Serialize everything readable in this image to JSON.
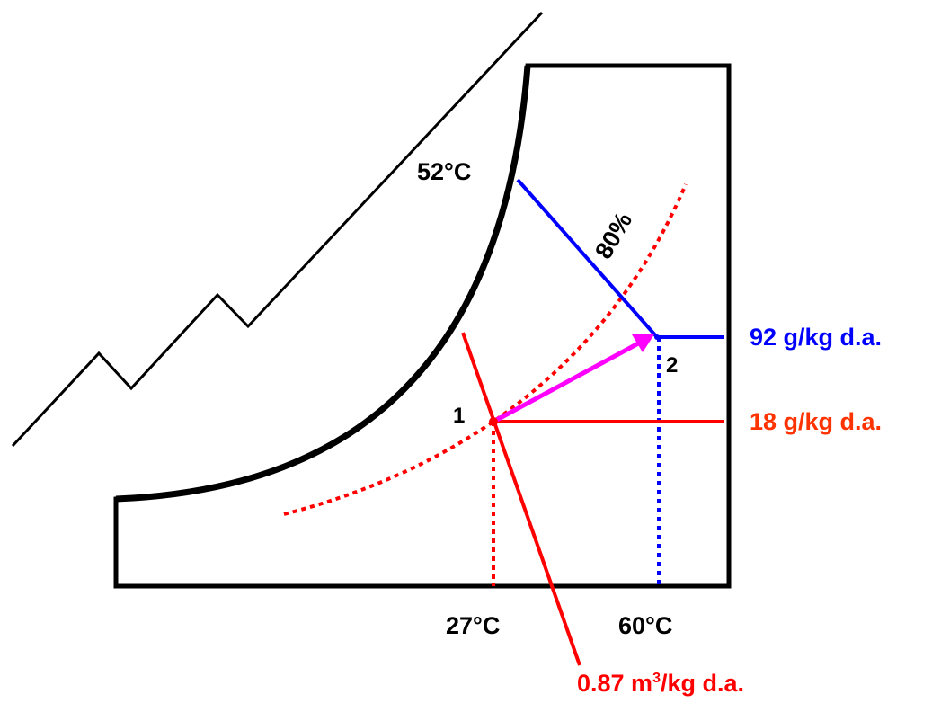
{
  "colors": {
    "outline": "#000000",
    "state1": "#ff0000",
    "state2": "#0000ff",
    "process": "#ff00ff",
    "humidity_18": "#ff3300"
  },
  "labels": {
    "wet_bulb_temp": "52°C",
    "relative_humidity": "80%",
    "humidity_2": "92 g/kg d.a.",
    "humidity_1": "18 g/kg d.a.",
    "point_1": "1",
    "point_2": "2",
    "dry_bulb_1": "27°C",
    "dry_bulb_2": "60°C",
    "specific_volume": "0.87 m",
    "specific_volume_sup": "3",
    "specific_volume_tail": "/kg d.a."
  }
}
